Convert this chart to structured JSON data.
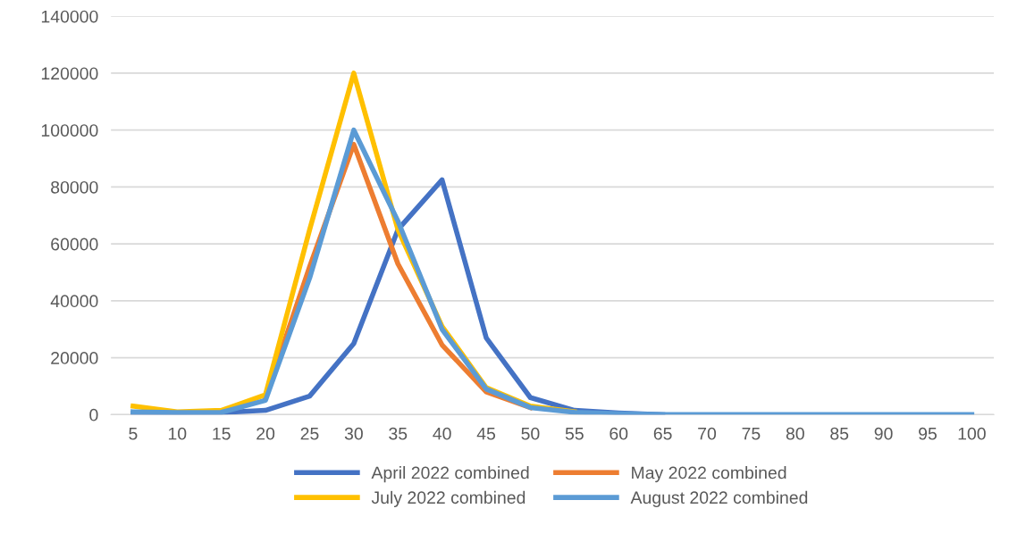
{
  "chart_data": {
    "type": "line",
    "categories": [
      "5",
      "10",
      "15",
      "20",
      "25",
      "30",
      "35",
      "40",
      "45",
      "50",
      "55",
      "60",
      "65",
      "70",
      "75",
      "80",
      "85",
      "90",
      "95",
      "100"
    ],
    "series": [
      {
        "name": "April 2022 combined",
        "color": "#4472c4",
        "values": [
          500,
          500,
          700,
          1500,
          6500,
          25000,
          65000,
          82500,
          27000,
          6000,
          1500,
          600,
          0,
          null,
          null,
          null,
          null,
          null,
          null,
          null
        ]
      },
      {
        "name": "May 2022 combined",
        "color": "#ed7d31",
        "values": [
          null,
          null,
          null,
          6000,
          52000,
          95000,
          53000,
          24500,
          8000,
          2500,
          null,
          null,
          null,
          null,
          null,
          null,
          null,
          null,
          null,
          null
        ]
      },
      {
        "name": "July 2022 combined",
        "color": "#ffc000",
        "values": [
          3000,
          1000,
          1500,
          7000,
          65000,
          120000,
          65000,
          31000,
          9500,
          3000,
          1000,
          null,
          null,
          null,
          null,
          null,
          null,
          null,
          null,
          null
        ]
      },
      {
        "name": "August 2022 combined",
        "color": "#5b9bd5",
        "values": [
          1000,
          700,
          800,
          5000,
          48000,
          100000,
          68000,
          30000,
          9000,
          2500,
          800,
          300,
          0,
          0,
          0,
          0,
          0,
          0,
          0,
          0
        ]
      }
    ],
    "ylim": [
      0,
      140000
    ],
    "yticks": [
      0,
      20000,
      40000,
      60000,
      80000,
      100000,
      120000,
      140000
    ],
    "grid": "y",
    "legend": "bottom",
    "marker": "none",
    "line_style": "solid"
  }
}
